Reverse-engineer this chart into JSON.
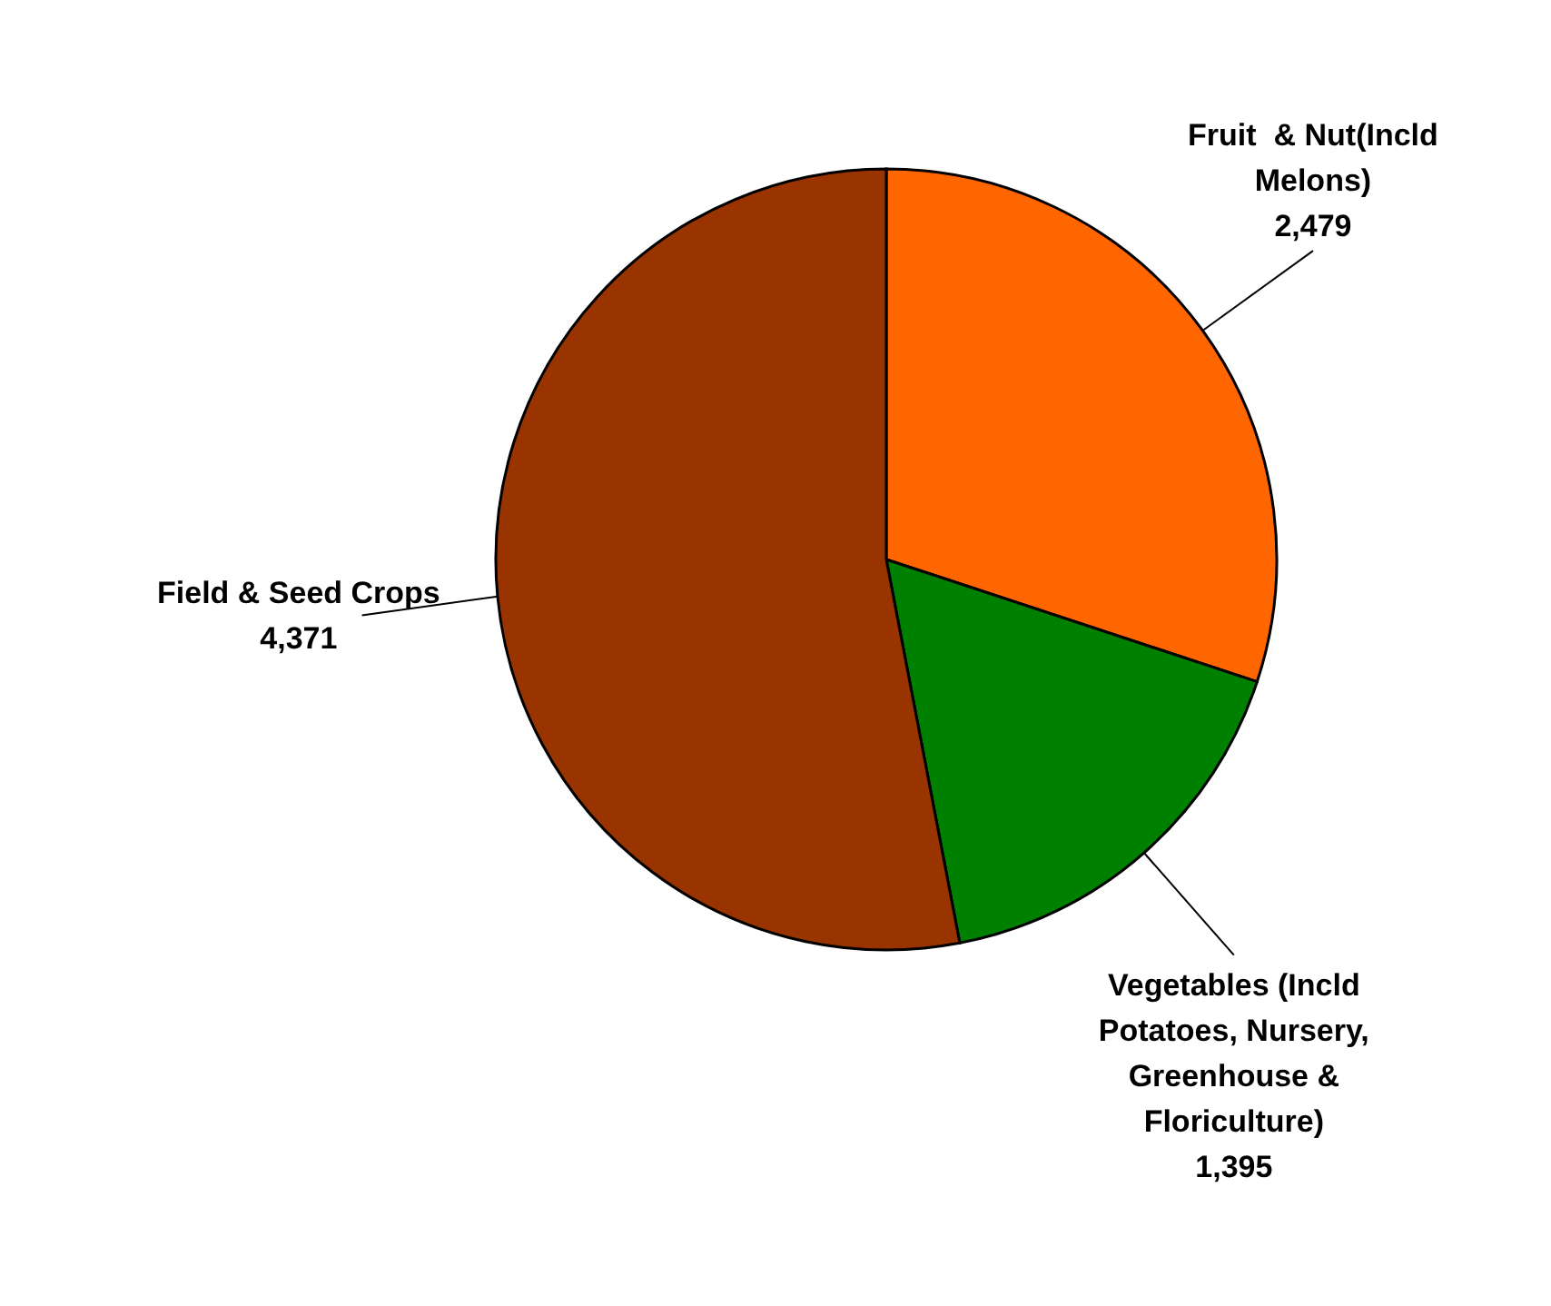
{
  "chart_data": {
    "type": "pie",
    "categories": [
      "Fruit  & Nut(Incld Melons)",
      "Vegetables (Incld Potatoes, Nursery, Greenhouse & Floriculture)",
      "Field & Seed Crops"
    ],
    "values": [
      2479,
      1395,
      4371
    ],
    "colors": [
      "#ff6600",
      "#008000",
      "#993300"
    ],
    "value_labels": [
      "2,479",
      "1,395",
      "4,371"
    ],
    "legend": false
  }
}
